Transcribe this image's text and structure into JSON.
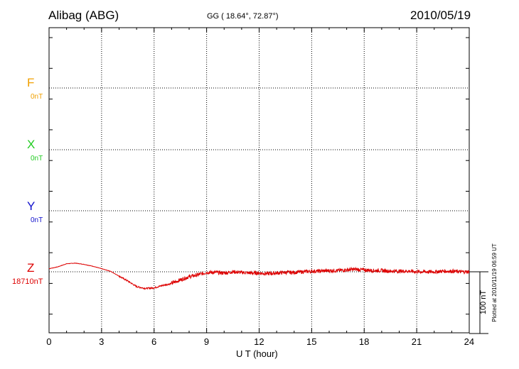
{
  "header": {
    "station": "Alibag (ABG)",
    "coords": "GG ( 18.64°,  72.87°)",
    "date": "2010/05/19"
  },
  "side_note": "Plotted at 2010/11/19 06:59 UT",
  "scale_label": "100 nT",
  "colors": {
    "F": "#f0a000",
    "X": "#22cc22",
    "Y": "#1010cc",
    "Z": "#dd0000",
    "grid": "#000000"
  },
  "chart_data": {
    "type": "line",
    "xlabel": "U T (hour)",
    "xlim": [
      0,
      24
    ],
    "x_ticks": [
      "0",
      "3",
      "6",
      "9",
      "12",
      "15",
      "18",
      "21",
      "24"
    ],
    "grid": true,
    "components": [
      {
        "name": "F",
        "baseline_label": "0nT"
      },
      {
        "name": "X",
        "baseline_label": "0nT"
      },
      {
        "name": "Y",
        "baseline_label": "0nT"
      },
      {
        "name": "Z",
        "baseline_label": "18710nT"
      }
    ],
    "series": [
      {
        "name": "Z",
        "units": "nT",
        "x": [
          0,
          0.5,
          1.0,
          1.5,
          2.0,
          2.5,
          3.0,
          3.5,
          4.0,
          4.5,
          5.0,
          5.5,
          6.0,
          6.5,
          7.0,
          7.5,
          8.0,
          8.5,
          9.0,
          9.5,
          10.0,
          10.5,
          11.0,
          11.5,
          12.0,
          12.5,
          13.0,
          13.5,
          14.0,
          14.5,
          15.0,
          15.5,
          16.0,
          16.5,
          17.0,
          17.5,
          18.0,
          18.5,
          19.0,
          19.5,
          20.0,
          20.5,
          21.0,
          21.5,
          22.0,
          22.5,
          23.0,
          23.5,
          24.0
        ],
        "values": [
          18715,
          18718,
          18723,
          18724,
          18722,
          18719,
          18715,
          18711,
          18703,
          18695,
          18686,
          18683,
          18684,
          18688,
          18691,
          18697,
          18702,
          18705,
          18709,
          18709,
          18708,
          18710,
          18709,
          18708,
          18708,
          18707,
          18708,
          18709,
          18709,
          18710,
          18711,
          18711,
          18712,
          18712,
          18713,
          18714,
          18713,
          18712,
          18712,
          18711,
          18711,
          18711,
          18710,
          18710,
          18710,
          18711,
          18711,
          18710,
          18710
        ],
        "noise_amplitude_nT": 3
      }
    ],
    "scale_bar_nT": 100
  }
}
